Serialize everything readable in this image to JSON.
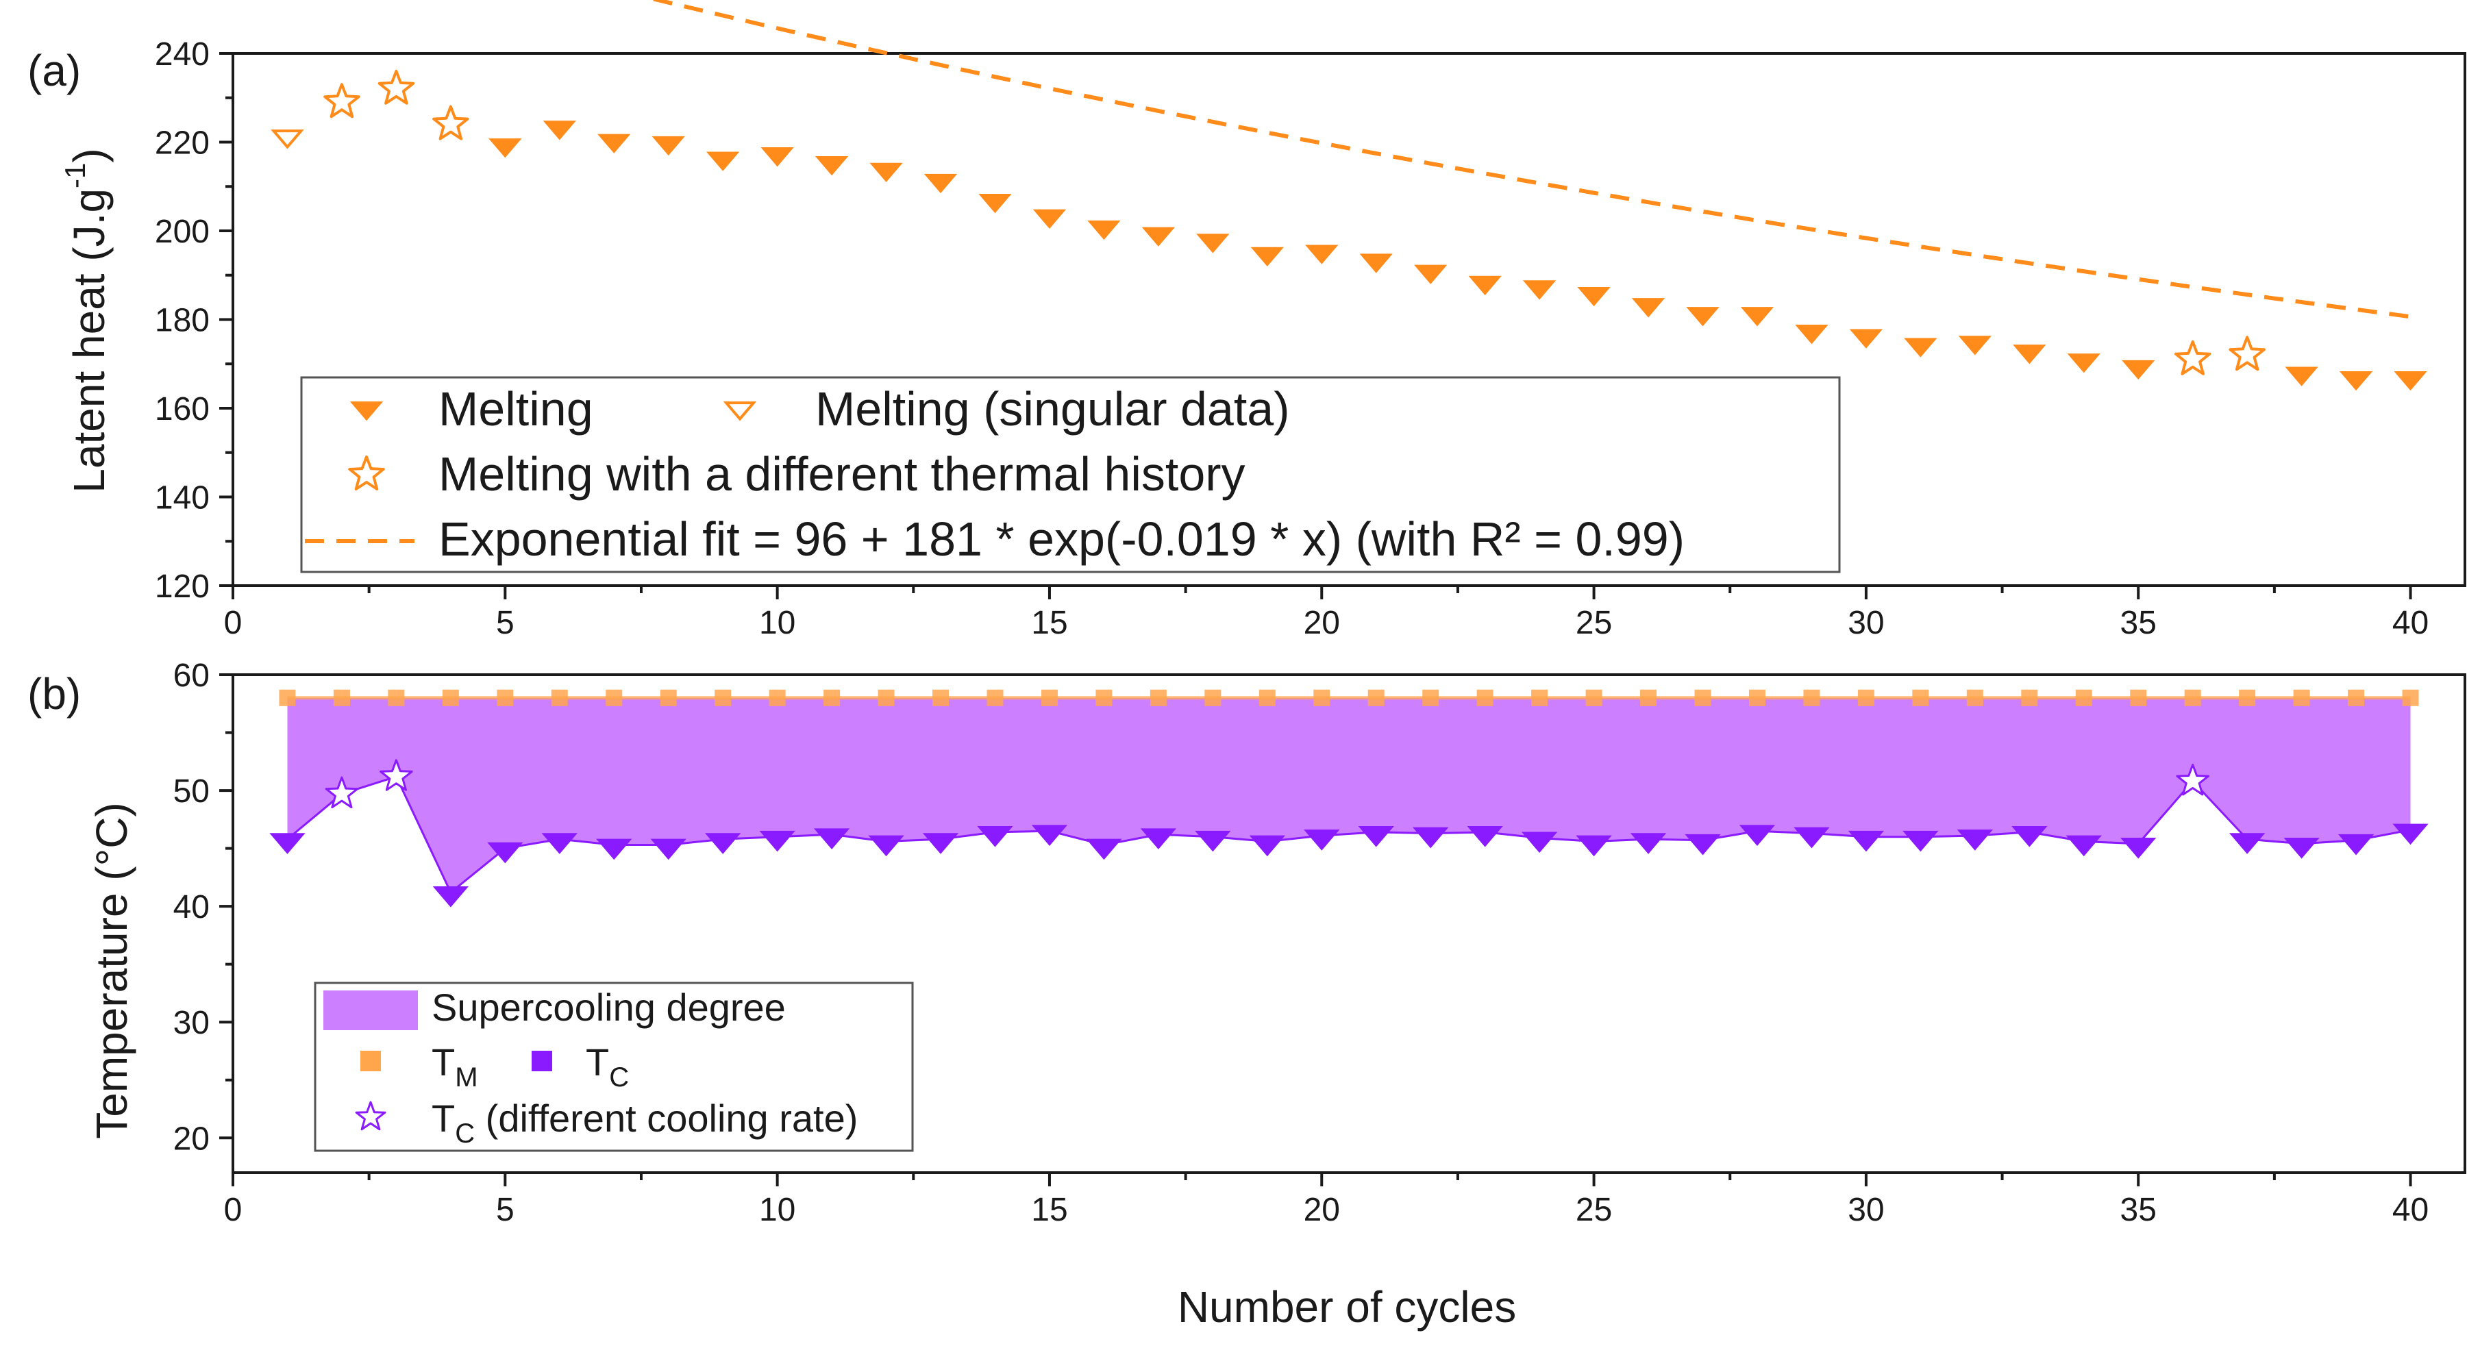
{
  "chart_data": [
    {
      "panel": "(a)",
      "type": "scatter",
      "xlabel": "",
      "ylabel": "Latent heat (J.g-1)",
      "ylabel_main": "Latent heat (J.g",
      "ylabel_sup": "-1",
      "ylabel_tail": ")",
      "xlim": [
        0,
        41
      ],
      "ylim": [
        120,
        240
      ],
      "xticks": [
        0,
        5,
        10,
        15,
        20,
        25,
        30,
        35,
        40
      ],
      "yticks": [
        120,
        140,
        160,
        180,
        200,
        220,
        240
      ],
      "colors": {
        "orange": "#ff8c1a",
        "fit": "#ff8c1a"
      },
      "series": [
        {
          "name": "Melting",
          "marker": "triangle-down-filled",
          "x": [
            5,
            6,
            7,
            8,
            9,
            10,
            11,
            12,
            13,
            14,
            15,
            16,
            17,
            18,
            19,
            20,
            21,
            22,
            23,
            24,
            25,
            26,
            27,
            28,
            29,
            30,
            31,
            32,
            33,
            34,
            35,
            38,
            39,
            40
          ],
          "y": [
            219,
            223,
            220,
            219.5,
            216,
            217,
            215,
            213.5,
            211,
            206.5,
            203,
            200.5,
            199,
            197.5,
            194.5,
            195,
            193,
            190.5,
            188,
            187,
            185.5,
            183,
            181,
            181,
            177,
            176,
            174,
            174.5,
            172.5,
            170.5,
            169,
            167.5,
            166.5,
            166.5
          ]
        },
        {
          "name": "Melting (singular data)",
          "marker": "triangle-down-open",
          "x": [
            1
          ],
          "y": [
            221
          ]
        },
        {
          "name": "Melting with a different thermal history",
          "marker": "star-open",
          "x": [
            2,
            3,
            4,
            36,
            37
          ],
          "y": [
            229,
            232,
            224,
            171,
            172
          ]
        },
        {
          "name": "Exponential fit = 96 + 181 * exp(-0.019 * x) (with R² = 0.99)",
          "type": "line-dashed",
          "formula": {
            "a": 96,
            "b": 181,
            "c": -0.019
          },
          "x_range": [
            1,
            40
          ]
        }
      ]
    },
    {
      "panel": "(b)",
      "type": "area",
      "xlabel": "Number of cycles",
      "ylabel": "Temperature (°C)",
      "xlim": [
        0,
        41
      ],
      "ylim": [
        17,
        60
      ],
      "xticks": [
        0,
        5,
        10,
        15,
        20,
        25,
        30,
        35,
        40
      ],
      "yticks": [
        20,
        30,
        40,
        50,
        60
      ],
      "colors": {
        "fill": "#cc7fff",
        "tm": "#ffa64d",
        "tc": "#8a1aff"
      },
      "series": [
        {
          "name": "TM",
          "marker": "square-filled",
          "x": [
            1,
            2,
            3,
            4,
            5,
            6,
            7,
            8,
            9,
            10,
            11,
            12,
            13,
            14,
            15,
            16,
            17,
            18,
            19,
            20,
            21,
            22,
            23,
            24,
            25,
            26,
            27,
            28,
            29,
            30,
            31,
            32,
            33,
            34,
            35,
            36,
            37,
            38,
            39,
            40
          ],
          "y": [
            58,
            58,
            58,
            58,
            58,
            58,
            58,
            58,
            58,
            58,
            58,
            58,
            58,
            58,
            58,
            58,
            58,
            58,
            58,
            58,
            58,
            58,
            58,
            58,
            58,
            58,
            58,
            58,
            58,
            58,
            58,
            58,
            58,
            58,
            58,
            58,
            58,
            58,
            58,
            58
          ]
        },
        {
          "name": "TC",
          "marker": "triangle-down-filled",
          "x": [
            1,
            4,
            5,
            6,
            7,
            8,
            9,
            10,
            11,
            12,
            13,
            14,
            15,
            16,
            17,
            18,
            19,
            20,
            21,
            22,
            23,
            24,
            25,
            26,
            27,
            28,
            29,
            30,
            31,
            32,
            33,
            34,
            35,
            37,
            38,
            39,
            40
          ],
          "y": [
            45.8,
            41.2,
            45,
            45.8,
            45.3,
            45.3,
            45.8,
            46,
            46.2,
            45.6,
            45.8,
            46.4,
            46.5,
            45.3,
            46.2,
            46,
            45.6,
            46.1,
            46.4,
            46.3,
            46.4,
            45.9,
            45.6,
            45.8,
            45.7,
            46.5,
            46.3,
            46,
            46,
            46.1,
            46.4,
            45.6,
            45.4,
            45.8,
            45.4,
            45.7,
            46.6
          ]
        },
        {
          "name": "TC (different cooling rate)",
          "marker": "star-open",
          "x": [
            2,
            3,
            36
          ],
          "y": [
            49.7,
            51.2,
            50.8
          ]
        },
        {
          "name": "Supercooling degree",
          "type": "fill-between",
          "between": [
            "TM",
            "TC"
          ]
        }
      ]
    }
  ],
  "panels": {
    "a": {
      "label": "(a)",
      "legend": {
        "melting": "Melting",
        "singular": "Melting (singular data)",
        "history": "Melting with a different thermal history",
        "fit": "Exponential fit = 96 + 181 * exp(-0.019 * x) (with R² = 0.99)"
      }
    },
    "b": {
      "label": "(b)",
      "xlabel": "Number of cycles",
      "ylabel": "Temperature (°C)",
      "legend": {
        "supercooling": "Supercooling degree",
        "tm_main": "T",
        "tm_sub": "M",
        "tc_main": "T",
        "tc_sub": "C",
        "tc_rate_main": "T",
        "tc_rate_sub": "C",
        "tc_rate_tail": " (different cooling rate)"
      }
    }
  }
}
